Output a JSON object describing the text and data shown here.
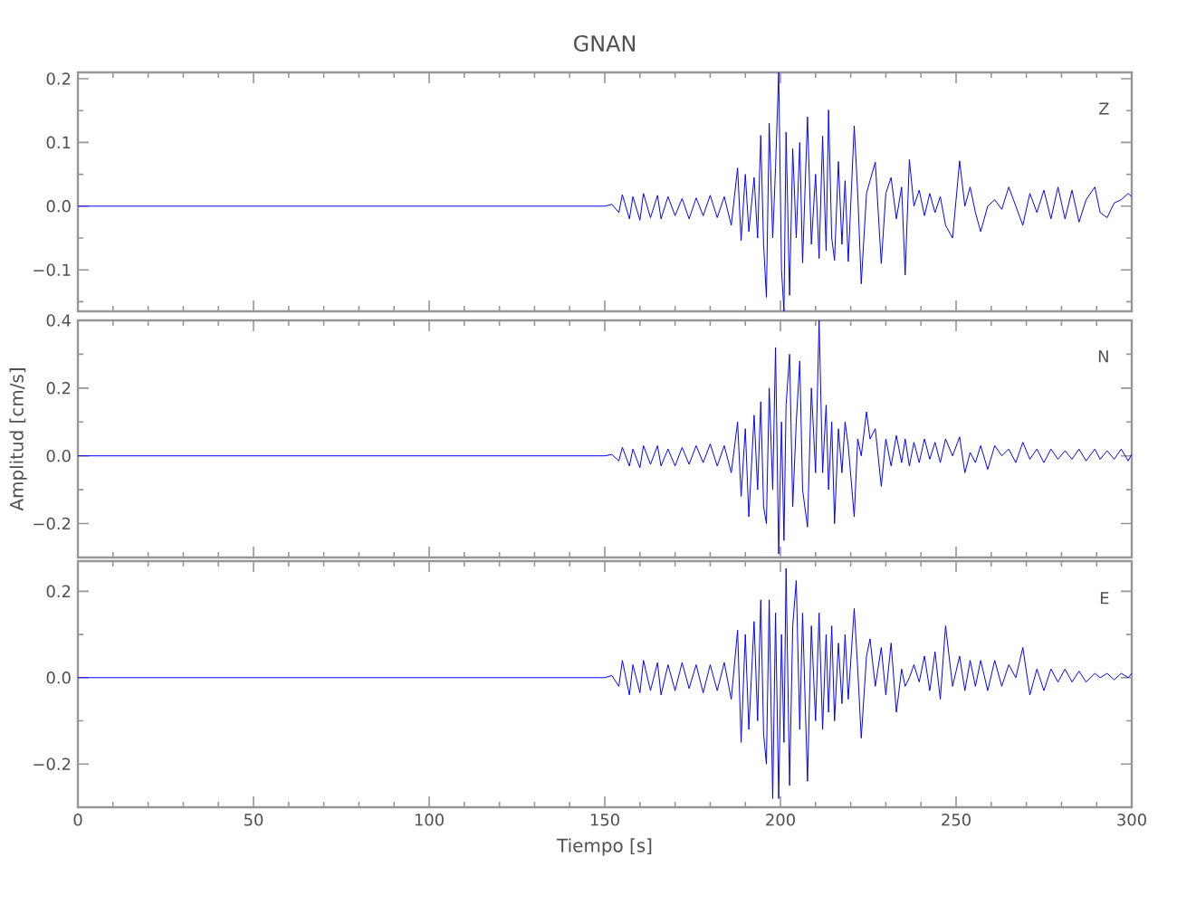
{
  "chart_data": [
    {
      "type": "line",
      "title": "GNAN",
      "color": "#0000ff",
      "grid": false,
      "tick_labels": "y",
      "annotations": [
        "Z"
      ],
      "xlim": [
        0,
        300
      ],
      "ylim": [
        -0.165,
        0.21
      ],
      "xticks": [
        0,
        50,
        100,
        150,
        200,
        250,
        300,
        {
          "value": 10,
          "label": null
        },
        {
          "value": 20,
          "label": null
        },
        {
          "value": 30,
          "label": null
        },
        {
          "value": 40,
          "label": null
        },
        {
          "value": 60,
          "label": null
        },
        {
          "value": 70,
          "label": null
        },
        {
          "value": 80,
          "label": null
        },
        {
          "value": 90,
          "label": null
        },
        {
          "value": 110,
          "label": null
        },
        {
          "value": 120,
          "label": null
        },
        {
          "value": 130,
          "label": null
        },
        {
          "value": 140,
          "label": null
        },
        {
          "value": 160,
          "label": null
        },
        {
          "value": 170,
          "label": null
        },
        {
          "value": 180,
          "label": null
        },
        {
          "value": 190,
          "label": null
        },
        {
          "value": 210,
          "label": null
        },
        {
          "value": 220,
          "label": null
        },
        {
          "value": 230,
          "label": null
        },
        {
          "value": 240,
          "label": null
        },
        {
          "value": 260,
          "label": null
        },
        {
          "value": 270,
          "label": null
        },
        {
          "value": 280,
          "label": null
        },
        {
          "value": 290,
          "label": null
        }
      ],
      "yticks": [
        {
          "value": -0.1,
          "label": "−0.1"
        },
        {
          "value": 0,
          "label": "0.0"
        },
        {
          "value": 0.1,
          "label": "0.1"
        },
        {
          "value": 0.2,
          "label": "0.2"
        },
        {
          "value": -0.15,
          "label": null
        },
        {
          "value": -0.05,
          "label": null
        },
        {
          "value": 0.05,
          "label": null
        },
        {
          "value": 0.15,
          "label": null
        }
      ],
      "x": [
        0,
        150,
        152,
        154,
        155,
        157,
        158,
        160,
        161,
        163,
        165,
        166,
        168,
        170,
        172,
        174,
        176,
        178,
        180,
        182,
        184,
        186,
        187.8,
        188.8,
        190,
        191,
        192.5,
        193.5,
        194.4,
        195.2,
        196,
        196.8,
        197.8,
        198.6,
        199.5,
        200.3,
        201,
        201.6,
        202.6,
        203.5,
        204.5,
        205.5,
        206.3,
        207.7,
        208.8,
        210,
        211,
        212,
        213,
        213.7,
        214.6,
        215.4,
        216.5,
        217.5,
        218.4,
        219.3,
        221,
        222,
        223,
        224.5,
        225.5,
        227,
        228.7,
        230,
        231.5,
        233,
        234.5,
        235.5,
        236.7,
        238,
        239.5,
        241,
        242.5,
        244,
        245.5,
        247,
        249,
        251,
        252.5,
        254,
        255.5,
        257,
        259,
        261,
        263,
        265,
        267,
        269,
        271,
        273,
        275,
        277,
        279,
        281,
        283,
        285,
        287,
        289.5,
        291,
        293,
        295,
        297,
        299,
        300
      ],
      "values": [
        0,
        0,
        0.003,
        -0.01,
        0.018,
        -0.02,
        0.015,
        -0.022,
        0.02,
        -0.018,
        0.017,
        -0.02,
        0.015,
        -0.015,
        0.012,
        -0.02,
        0.013,
        -0.015,
        0.017,
        -0.018,
        0.015,
        -0.03,
        0.06,
        -0.054,
        0.05,
        -0.04,
        0.045,
        -0.05,
        0.111,
        -0.06,
        -0.143,
        0.13,
        -0.05,
        0.06,
        0.21,
        -0.1,
        -0.165,
        0.116,
        -0.14,
        0.09,
        -0.05,
        0.1,
        -0.089,
        0.14,
        -0.06,
        0.05,
        -0.082,
        0.11,
        -0.07,
        0.151,
        -0.05,
        -0.085,
        0.07,
        -0.06,
        0.04,
        -0.087,
        0.126,
        0.02,
        -0.122,
        0.02,
        0.04,
        0.069,
        -0.09,
        0.02,
        0.045,
        -0.02,
        0.03,
        -0.108,
        0.073,
        0,
        0.025,
        -0.015,
        0.02,
        -0.01,
        0.015,
        -0.03,
        -0.05,
        0.071,
        0,
        0.03,
        -0.01,
        -0.04,
        0,
        0.01,
        -0.005,
        0.03,
        0,
        -0.03,
        0.02,
        -0.01,
        0.025,
        -0.02,
        0.03,
        -0.02,
        0.025,
        -0.025,
        0.01,
        0.03,
        -0.01,
        -0.018,
        0.005,
        0.01,
        0.02,
        0.015
      ]
    },
    {
      "type": "line",
      "ylabel": "Amplitud [cm/s]",
      "color": "#0000ff",
      "grid": false,
      "tick_labels": "y",
      "annotations": [
        "N"
      ],
      "xlim": [
        0,
        300
      ],
      "ylim": [
        -0.3,
        0.4
      ],
      "xticks": [
        0,
        50,
        100,
        150,
        200,
        250,
        300,
        {
          "value": 10,
          "label": null
        },
        {
          "value": 20,
          "label": null
        },
        {
          "value": 30,
          "label": null
        },
        {
          "value": 40,
          "label": null
        },
        {
          "value": 60,
          "label": null
        },
        {
          "value": 70,
          "label": null
        },
        {
          "value": 80,
          "label": null
        },
        {
          "value": 90,
          "label": null
        },
        {
          "value": 110,
          "label": null
        },
        {
          "value": 120,
          "label": null
        },
        {
          "value": 130,
          "label": null
        },
        {
          "value": 140,
          "label": null
        },
        {
          "value": 160,
          "label": null
        },
        {
          "value": 170,
          "label": null
        },
        {
          "value": 180,
          "label": null
        },
        {
          "value": 190,
          "label": null
        },
        {
          "value": 210,
          "label": null
        },
        {
          "value": 220,
          "label": null
        },
        {
          "value": 230,
          "label": null
        },
        {
          "value": 240,
          "label": null
        },
        {
          "value": 260,
          "label": null
        },
        {
          "value": 270,
          "label": null
        },
        {
          "value": 280,
          "label": null
        },
        {
          "value": 290,
          "label": null
        }
      ],
      "yticks": [
        {
          "value": -0.2,
          "label": "−0.2"
        },
        {
          "value": 0,
          "label": "0.0"
        },
        {
          "value": 0.2,
          "label": "0.2"
        },
        {
          "value": 0.4,
          "label": "0.4"
        },
        {
          "value": -0.3,
          "label": null
        },
        {
          "value": -0.1,
          "label": null
        },
        {
          "value": 0.1,
          "label": null
        },
        {
          "value": 0.3,
          "label": null
        }
      ],
      "x": [
        0,
        150,
        152,
        154,
        155,
        157,
        158,
        160,
        161,
        163,
        165,
        166,
        168,
        170,
        172,
        174,
        176,
        178,
        180,
        182,
        184,
        186,
        187.8,
        188.8,
        190,
        191,
        192.5,
        193.5,
        194.4,
        195.2,
        196,
        196.8,
        197.8,
        198.6,
        199.5,
        200.3,
        201,
        201.6,
        202.6,
        203.5,
        204.5,
        205.5,
        206.3,
        207.7,
        208.8,
        210,
        211,
        212,
        213,
        213.7,
        214.6,
        215.4,
        216.5,
        217.5,
        218.4,
        219.3,
        221,
        222,
        223,
        224.5,
        225.5,
        227,
        228.7,
        230,
        231.5,
        233,
        234.5,
        235.5,
        236.7,
        238,
        239.5,
        241,
        242.5,
        244,
        245.5,
        247,
        249,
        251,
        252.5,
        254,
        255.5,
        257,
        259,
        261,
        263,
        265,
        267,
        269,
        271,
        273,
        275,
        277,
        279,
        281,
        283,
        285,
        287,
        289.5,
        291,
        293,
        295,
        297,
        299,
        300
      ],
      "values": [
        0,
        0,
        0.004,
        -0.015,
        0.025,
        -0.03,
        0.02,
        -0.035,
        0.03,
        -0.025,
        0.03,
        -0.03,
        0.02,
        -0.03,
        0.025,
        -0.025,
        0.03,
        -0.02,
        0.035,
        -0.03,
        0.03,
        -0.05,
        0.1,
        -0.12,
        0.08,
        -0.18,
        0.12,
        -0.1,
        0.16,
        -0.15,
        -0.2,
        0.2,
        -0.1,
        0.32,
        -0.29,
        0.1,
        -0.25,
        0.15,
        0.3,
        -0.15,
        0.1,
        0.28,
        -0.1,
        -0.21,
        0.2,
        -0.05,
        0.4,
        -0.05,
        0.15,
        -0.1,
        0.1,
        -0.2,
        0.08,
        -0.05,
        0.1,
        0.03,
        -0.18,
        0.05,
        0,
        0.13,
        0.05,
        0.08,
        -0.09,
        0.05,
        -0.03,
        0.06,
        -0.02,
        0.05,
        -0.03,
        0.04,
        -0.02,
        0.05,
        -0.01,
        0.04,
        -0.02,
        0.05,
        0,
        0.056,
        -0.05,
        0.01,
        -0.02,
        0.03,
        -0.04,
        0.03,
        0,
        0.02,
        -0.02,
        0.04,
        -0.01,
        0.02,
        -0.02,
        0.02,
        -0.01,
        0.015,
        -0.01,
        0.02,
        -0.015,
        0.02,
        -0.01,
        0.015,
        -0.01,
        0.02,
        -0.015,
        0.005
      ]
    },
    {
      "type": "line",
      "xlabel": "Tiempo [s]",
      "color": "#0000ff",
      "grid": false,
      "annotations": [
        "E"
      ],
      "xlim": [
        0,
        300
      ],
      "ylim": [
        -0.3,
        0.27
      ],
      "xticks": [
        0,
        50,
        100,
        150,
        200,
        250,
        300,
        {
          "value": 10,
          "label": null
        },
        {
          "value": 20,
          "label": null
        },
        {
          "value": 30,
          "label": null
        },
        {
          "value": 40,
          "label": null
        },
        {
          "value": 60,
          "label": null
        },
        {
          "value": 70,
          "label": null
        },
        {
          "value": 80,
          "label": null
        },
        {
          "value": 90,
          "label": null
        },
        {
          "value": 110,
          "label": null
        },
        {
          "value": 120,
          "label": null
        },
        {
          "value": 130,
          "label": null
        },
        {
          "value": 140,
          "label": null
        },
        {
          "value": 160,
          "label": null
        },
        {
          "value": 170,
          "label": null
        },
        {
          "value": 180,
          "label": null
        },
        {
          "value": 190,
          "label": null
        },
        {
          "value": 210,
          "label": null
        },
        {
          "value": 220,
          "label": null
        },
        {
          "value": 230,
          "label": null
        },
        {
          "value": 240,
          "label": null
        },
        {
          "value": 260,
          "label": null
        },
        {
          "value": 270,
          "label": null
        },
        {
          "value": 280,
          "label": null
        },
        {
          "value": 290,
          "label": null
        }
      ],
      "yticks": [
        {
          "value": -0.2,
          "label": "−0.2"
        },
        {
          "value": 0,
          "label": "0.0"
        },
        {
          "value": 0.2,
          "label": "0.2"
        },
        {
          "value": -0.3,
          "label": null
        },
        {
          "value": -0.1,
          "label": null
        },
        {
          "value": 0.1,
          "label": null
        }
      ],
      "x": [
        0,
        150,
        152,
        154,
        155,
        157,
        158,
        160,
        161,
        163,
        165,
        166,
        168,
        170,
        172,
        174,
        176,
        178,
        180,
        182,
        184,
        186,
        187.8,
        188.8,
        190,
        191,
        192.5,
        193.5,
        194.4,
        195.2,
        196,
        196.8,
        197.8,
        198.6,
        199.5,
        200.3,
        201,
        201.6,
        202.6,
        203.5,
        204.5,
        205.5,
        206.3,
        207.7,
        208.8,
        210,
        211,
        212,
        213,
        213.7,
        214.6,
        215.4,
        216.5,
        217.5,
        218.4,
        219.3,
        221,
        222,
        223,
        224.5,
        225.5,
        227,
        228.7,
        230,
        231.5,
        233,
        234.5,
        235.5,
        236.7,
        238,
        239.5,
        241,
        242.5,
        244,
        245.5,
        247,
        249,
        251,
        252.5,
        254,
        255.5,
        257,
        259,
        261,
        263,
        265,
        267,
        269,
        271,
        273,
        275,
        277,
        279,
        281,
        283,
        285,
        287,
        289.5,
        291,
        293,
        295,
        297,
        299,
        300
      ],
      "values": [
        0,
        0,
        0.005,
        -0.02,
        0.04,
        -0.04,
        0.03,
        -0.035,
        0.04,
        -0.03,
        0.035,
        -0.04,
        0.03,
        -0.03,
        0.035,
        -0.025,
        0.03,
        -0.035,
        0.03,
        -0.03,
        0.035,
        -0.05,
        0.11,
        -0.15,
        0.1,
        -0.12,
        0.13,
        -0.1,
        0.18,
        -0.13,
        -0.2,
        0.18,
        -0.28,
        0.15,
        -0.28,
        0.1,
        -0.15,
        0.253,
        -0.25,
        0.12,
        0.225,
        -0.12,
        0.15,
        -0.24,
        0.12,
        -0.1,
        0.15,
        -0.12,
        0.1,
        -0.08,
        0.12,
        -0.1,
        0.08,
        -0.06,
        0.1,
        -0.05,
        0.16,
        0.02,
        -0.14,
        0.05,
        0.09,
        -0.02,
        0.07,
        -0.04,
        0.08,
        -0.08,
        0.02,
        -0.02,
        0,
        0.03,
        -0.01,
        0.05,
        -0.03,
        0.06,
        -0.05,
        0.12,
        -0.02,
        0.05,
        -0.03,
        0.04,
        -0.02,
        0.04,
        -0.03,
        0.04,
        -0.02,
        0.03,
        0,
        0.07,
        -0.04,
        0.02,
        -0.03,
        0.02,
        -0.01,
        0.02,
        -0.01,
        0.015,
        -0.01,
        0.01,
        0,
        0.01,
        -0.005,
        0.01,
        0,
        0.01
      ]
    }
  ]
}
